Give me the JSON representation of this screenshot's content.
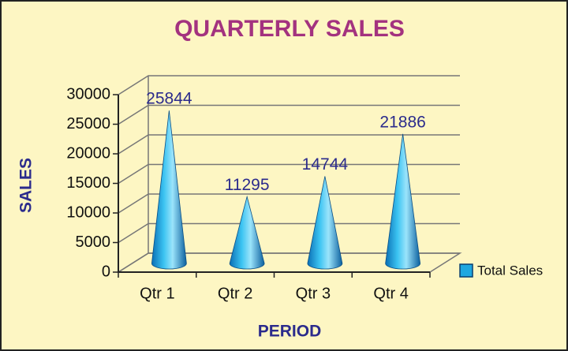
{
  "chart_data": {
    "type": "cone",
    "title": "QUARTERLY SALES",
    "x_label": "PERIOD",
    "y_label": "SALES",
    "categories": [
      "Qtr 1",
      "Qtr 2",
      "Qtr 3",
      "Qtr 4"
    ],
    "series": [
      {
        "name": "Total Sales",
        "color": "#1fa8e0",
        "values": [
          25844,
          11295,
          14744,
          21886
        ]
      }
    ],
    "ylim": [
      0,
      30000
    ],
    "yticks": [
      0,
      5000,
      10000,
      15000,
      20000,
      25000,
      30000
    ],
    "grid": true,
    "legend": "right"
  }
}
